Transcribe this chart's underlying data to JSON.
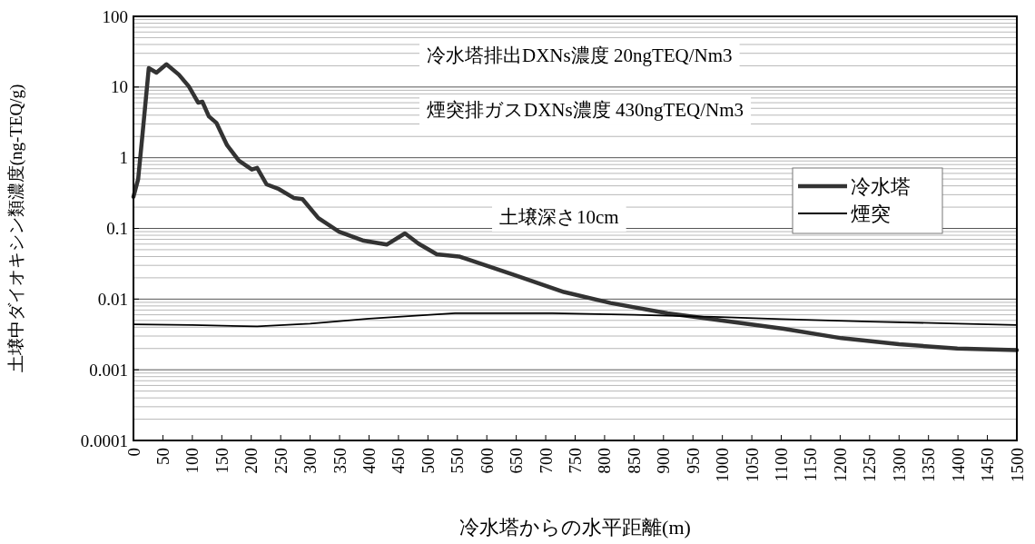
{
  "chart_data": {
    "type": "line",
    "xlabel": "冷水塔からの水平距離(m)",
    "ylabel": "土壌中ダイオキシン類濃度(ng-TEQ/g)",
    "annotations": [
      "冷水塔排出DXNs濃度 20ngTEQ/Nm3",
      "煙突排ガスDXNs濃度 430ngTEQ/Nm3",
      "土壌深さ10cm"
    ],
    "log": "y",
    "grid": "y",
    "legend": "right",
    "marker": "none",
    "line_style": "solid",
    "xlim": [
      0,
      1500
    ],
    "xticks": [
      0,
      50,
      100,
      150,
      200,
      250,
      300,
      350,
      400,
      450,
      500,
      550,
      600,
      650,
      700,
      750,
      800,
      850,
      900,
      950,
      1000,
      1050,
      1100,
      1150,
      1200,
      1250,
      1300,
      1350,
      1400,
      1450,
      1500
    ],
    "ylim": [
      0.0001,
      100
    ],
    "yticks": [
      {
        "value": 0.0001,
        "label": "0.0001"
      },
      {
        "value": 0.001,
        "label": "0.001"
      },
      {
        "value": 0.01,
        "label": "0.01"
      },
      {
        "value": 0.1,
        "label": "0.1"
      },
      {
        "value": 1,
        "label": "1"
      },
      {
        "value": 10,
        "label": "10"
      },
      {
        "value": 100,
        "label": "100"
      }
    ],
    "series": [
      {
        "name": "冷水塔",
        "color": "#333333",
        "x": [
          0,
          8,
          15,
          26,
          39,
          56,
          77,
          94,
          110,
          117,
          128,
          141,
          159,
          179,
          201,
          210,
          226,
          247,
          272,
          287,
          314,
          349,
          391,
          430,
          461,
          484,
          515,
          553,
          646,
          731,
          810,
          907,
          1006,
          1104,
          1202,
          1300,
          1399,
          1500
        ],
        "values": [
          0.28,
          0.5,
          2.0,
          18.5,
          16,
          21,
          15,
          10.2,
          6,
          6.2,
          3.85,
          3.1,
          1.5,
          0.91,
          0.68,
          0.72,
          0.42,
          0.36,
          0.27,
          0.26,
          0.14,
          0.09,
          0.067,
          0.059,
          0.085,
          0.061,
          0.043,
          0.04,
          0.022,
          0.0126,
          0.0088,
          0.0063,
          0.0049,
          0.0038,
          0.0028,
          0.0023,
          0.002,
          0.0019
        ]
      },
      {
        "name": "煙突",
        "color": "#000000",
        "x": [
          0,
          100,
          210,
          300,
          400,
          546,
          711,
          850,
          986,
          1100,
          1250,
          1400,
          1500
        ],
        "values": [
          0.0044,
          0.0043,
          0.0041,
          0.0045,
          0.0053,
          0.0063,
          0.0063,
          0.006,
          0.0056,
          0.0052,
          0.0048,
          0.0045,
          0.0043
        ]
      }
    ]
  }
}
